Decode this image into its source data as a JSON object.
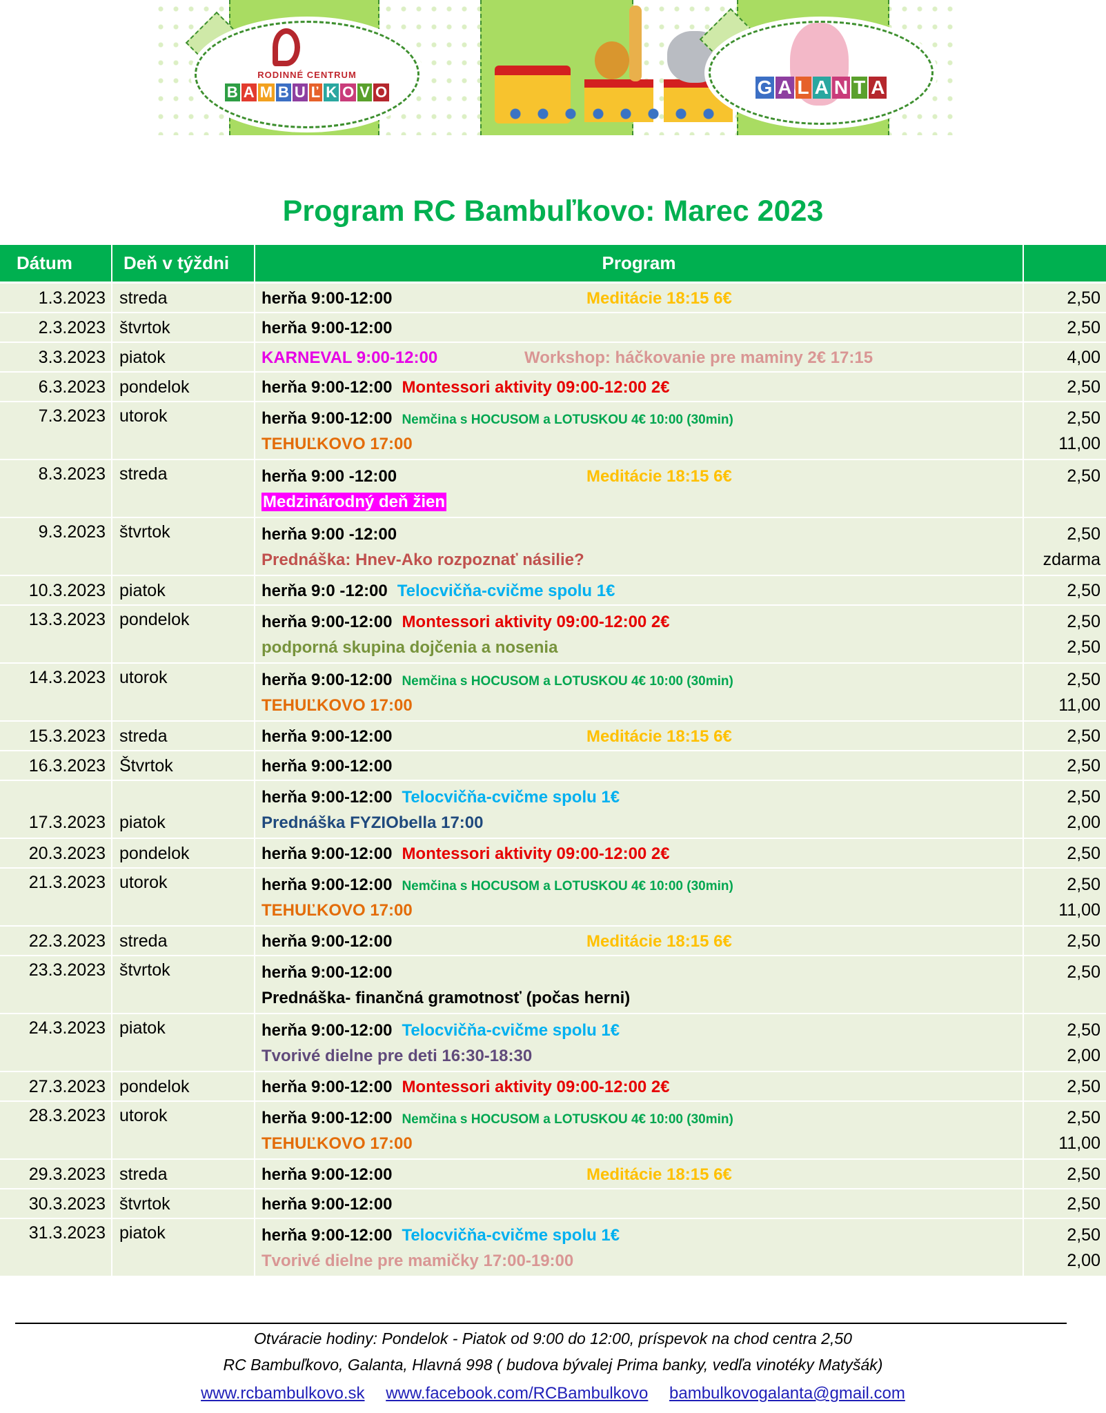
{
  "banner": {
    "left_logo_top": "RODINNÉ CENTRUM",
    "left_logo_letters": [
      "B",
      "A",
      "M",
      "B",
      "U",
      "Ľ",
      "K",
      "O",
      "V",
      "O"
    ],
    "right_logo_letters": [
      "G",
      "A",
      "L",
      "A",
      "N",
      "T",
      "A"
    ]
  },
  "title": "Program RC Bambuľkovo: Marec 2023",
  "header": {
    "date": "Dátum",
    "day": "Deň v týždni",
    "program": "Program",
    "price": ""
  },
  "colors": {
    "header_green": "#00b050",
    "row_bg": "#ebf1de"
  },
  "rows": [
    {
      "date": "1.3.2023",
      "day": "streda",
      "lines": [
        [
          {
            "text": "herňa 9:00-12:00",
            "color": "#000000"
          },
          {
            "text": "Meditácie 18:15 6€",
            "color": "#ffc000",
            "kind": "meditacie"
          }
        ]
      ],
      "prices": [
        "2,50"
      ]
    },
    {
      "date": "2.3.2023",
      "day": "štvrtok",
      "lines": [
        [
          {
            "text": "herňa 9:00-12:00",
            "color": "#000000"
          }
        ]
      ],
      "prices": [
        "2,50"
      ]
    },
    {
      "date": "3.3.2023",
      "day": "piatok",
      "lines": [
        [
          {
            "text": "KARNEVAL 9:00-12:00",
            "color": "#e600e6"
          },
          {
            "text": "Workshop: háčkovanie pre maminy 2€ 17:15",
            "color": "#d99694",
            "kind": "workshop"
          }
        ]
      ],
      "prices": [
        "4,00"
      ]
    },
    {
      "date": "6.3.2023",
      "day": "pondelok",
      "lines": [
        [
          {
            "text": "herňa 9:00-12:00",
            "color": "#000000"
          },
          {
            "text": "Montessori aktivity 09:00-12:00 2€",
            "color": "#e60000"
          }
        ]
      ],
      "prices": [
        "2,50"
      ]
    },
    {
      "date": "7.3.2023",
      "day": "utorok",
      "lines": [
        [
          {
            "text": "herňa 9:00-12:00",
            "color": "#000000"
          },
          {
            "text": "Nemčina s HOCUSOM a LOTUSKOU 4€ 10:00 (30min)",
            "color": "#00a650",
            "kind": "small"
          }
        ],
        [
          {
            "text": "TEHUĽKOVO 17:00",
            "color": "#e36c09"
          }
        ]
      ],
      "prices": [
        "2,50",
        "11,00"
      ]
    },
    {
      "date": "8.3.2023",
      "day": "streda",
      "lines": [
        [
          {
            "text": "herňa 9:00 -12:00",
            "color": "#000000"
          },
          {
            "text": "Meditácie 18:15 6€",
            "color": "#ffc000",
            "kind": "meditacie"
          }
        ],
        [
          {
            "text": "Medzinárodný deň žien",
            "color": "#ffffff",
            "highlight": "#ff00ff"
          }
        ]
      ],
      "prices": [
        "2,50"
      ]
    },
    {
      "date": "9.3.2023",
      "day": "štvrtok",
      "lines": [
        [
          {
            "text": "herňa 9:00 -12:00",
            "color": "#000000"
          }
        ],
        [
          {
            "text": "Prednáška: Hnev-Ako rozpoznať násilie?",
            "color": "#c0504d"
          }
        ]
      ],
      "prices": [
        "2,50",
        "zdarma"
      ]
    },
    {
      "date": "10.3.2023",
      "day": "piatok",
      "lines": [
        [
          {
            "text": "herňa 9:0 -12:00",
            "color": "#000000"
          },
          {
            "text": "Telocvičňa-cvičme spolu 1€",
            "color": "#00b0f0"
          }
        ]
      ],
      "prices": [
        "2,50"
      ]
    },
    {
      "date": "13.3.2023",
      "day": "pondelok",
      "lines": [
        [
          {
            "text": "herňa 9:00-12:00",
            "color": "#000000"
          },
          {
            "text": "Montessori aktivity 09:00-12:00 2€",
            "color": "#e60000"
          }
        ],
        [
          {
            "text": "podporná skupina dojčenia a nosenia",
            "color": "#77933c"
          }
        ]
      ],
      "prices": [
        "2,50",
        "2,50"
      ]
    },
    {
      "date": "14.3.2023",
      "day": "utorok",
      "lines": [
        [
          {
            "text": "herňa 9:00-12:00",
            "color": "#000000"
          },
          {
            "text": "Nemčina s HOCUSOM a LOTUSKOU 4€ 10:00 (30min)",
            "color": "#00a650",
            "kind": "small"
          }
        ],
        [
          {
            "text": "TEHUĽKOVO 17:00",
            "color": "#e36c09"
          }
        ]
      ],
      "prices": [
        "2,50",
        "11,00"
      ]
    },
    {
      "date": "15.3.2023",
      "day": "streda",
      "lines": [
        [
          {
            "text": "herňa 9:00-12:00",
            "color": "#000000"
          },
          {
            "text": "Meditácie 18:15 6€",
            "color": "#ffc000",
            "kind": "meditacie"
          }
        ]
      ],
      "prices": [
        "2,50"
      ]
    },
    {
      "date": "16.3.2023",
      "day": "Štvrtok",
      "lines": [
        [
          {
            "text": "herňa 9:00-12:00",
            "color": "#000000"
          }
        ]
      ],
      "prices": [
        "2,50"
      ]
    },
    {
      "date": "17.3.2023",
      "day": "piatok",
      "date_on_second_line": true,
      "lines": [
        [
          {
            "text": "herňa 9:00-12:00",
            "color": "#000000"
          },
          {
            "text": "Telocvičňa-cvičme spolu 1€",
            "color": "#00b0f0"
          }
        ],
        [
          {
            "text": "Prednáška FYZIObella 17:00",
            "color": "#1f497d"
          }
        ]
      ],
      "prices": [
        "2,50",
        "2,00"
      ]
    },
    {
      "date": "20.3.2023",
      "day": "pondelok",
      "lines": [
        [
          {
            "text": "herňa 9:00-12:00",
            "color": "#000000"
          },
          {
            "text": "Montessori aktivity 09:00-12:00 2€",
            "color": "#e60000"
          }
        ]
      ],
      "prices": [
        "2,50"
      ]
    },
    {
      "date": "21.3.2023",
      "day": "utorok",
      "lines": [
        [
          {
            "text": "herňa 9:00-12:00",
            "color": "#000000"
          },
          {
            "text": "Nemčina s HOCUSOM a LOTUSKOU 4€ 10:00 (30min)",
            "color": "#00a650",
            "kind": "small"
          }
        ],
        [
          {
            "text": "TEHUĽKOVO 17:00",
            "color": "#e36c09"
          }
        ]
      ],
      "prices": [
        "2,50",
        "11,00"
      ]
    },
    {
      "date": "22.3.2023",
      "day": "streda",
      "lines": [
        [
          {
            "text": "herňa 9:00-12:00",
            "color": "#000000"
          },
          {
            "text": "Meditácie 18:15 6€",
            "color": "#ffc000",
            "kind": "meditacie"
          }
        ]
      ],
      "prices": [
        "2,50"
      ]
    },
    {
      "date": "23.3.2023",
      "day": "štvrtok",
      "lines": [
        [
          {
            "text": "herňa 9:00-12:00",
            "color": "#000000"
          }
        ],
        [
          {
            "text": "Prednáška- finančná gramotnosť (počas herni)",
            "color": "#000000"
          }
        ]
      ],
      "prices": [
        "2,50"
      ]
    },
    {
      "date": "24.3.2023",
      "day": "piatok",
      "lines": [
        [
          {
            "text": "herňa 9:00-12:00",
            "color": "#000000"
          },
          {
            "text": "Telocvičňa-cvičme spolu 1€",
            "color": "#00b0f0"
          }
        ],
        [
          {
            "text": "Tvorivé dielne pre deti 16:30-18:30",
            "color": "#604a7b"
          }
        ]
      ],
      "prices": [
        "2,50",
        "2,00"
      ]
    },
    {
      "date": "27.3.2023",
      "day": "pondelok",
      "lines": [
        [
          {
            "text": "herňa 9:00-12:00",
            "color": "#000000"
          },
          {
            "text": "Montessori aktivity 09:00-12:00 2€",
            "color": "#e60000"
          }
        ]
      ],
      "prices": [
        "2,50"
      ]
    },
    {
      "date": "28.3.2023",
      "day": "utorok",
      "lines": [
        [
          {
            "text": "herňa 9:00-12:00",
            "color": "#000000"
          },
          {
            "text": "Nemčina s HOCUSOM a LOTUSKOU 4€ 10:00 (30min)",
            "color": "#00a650",
            "kind": "small"
          }
        ],
        [
          {
            "text": "TEHUĽKOVO 17:00",
            "color": "#e36c09"
          }
        ]
      ],
      "prices": [
        "2,50",
        "11,00"
      ]
    },
    {
      "date": "29.3.2023",
      "day": "streda",
      "lines": [
        [
          {
            "text": "herňa 9:00-12:00",
            "color": "#000000"
          },
          {
            "text": "Meditácie 18:15 6€",
            "color": "#ffc000",
            "kind": "meditacie"
          }
        ]
      ],
      "prices": [
        "2,50"
      ]
    },
    {
      "date": "30.3.2023",
      "day": "štvrtok",
      "lines": [
        [
          {
            "text": "herňa 9:00-12:00",
            "color": "#000000"
          }
        ]
      ],
      "prices": [
        "2,50"
      ]
    },
    {
      "date": "31.3.2023",
      "day": "piatok",
      "lines": [
        [
          {
            "text": "herňa 9:00-12:00",
            "color": "#000000"
          },
          {
            "text": "Telocvičňa-cvičme spolu 1€",
            "color": "#00b0f0"
          }
        ],
        [
          {
            "text": "Tvorivé dielne pre mamičky 17:00-19:00",
            "color": "#d99694"
          }
        ]
      ],
      "prices": [
        "2,50",
        "2,00"
      ]
    }
  ],
  "footer": {
    "hours": "Otváracie hodiny: Pondelok - Piatok od 9:00 do 12:00, príspevok na chod centra 2,50",
    "address": "RC Bambuľkovo, Galanta, Hlavná 998 ( budova bývalej Prima banky, vedľa vinotéky Matyšák)",
    "links": [
      "www.rcbambulkovo.sk",
      "www.facebook.com/RCBambulkovo",
      "bambulkovogalanta@gmail.com"
    ]
  }
}
